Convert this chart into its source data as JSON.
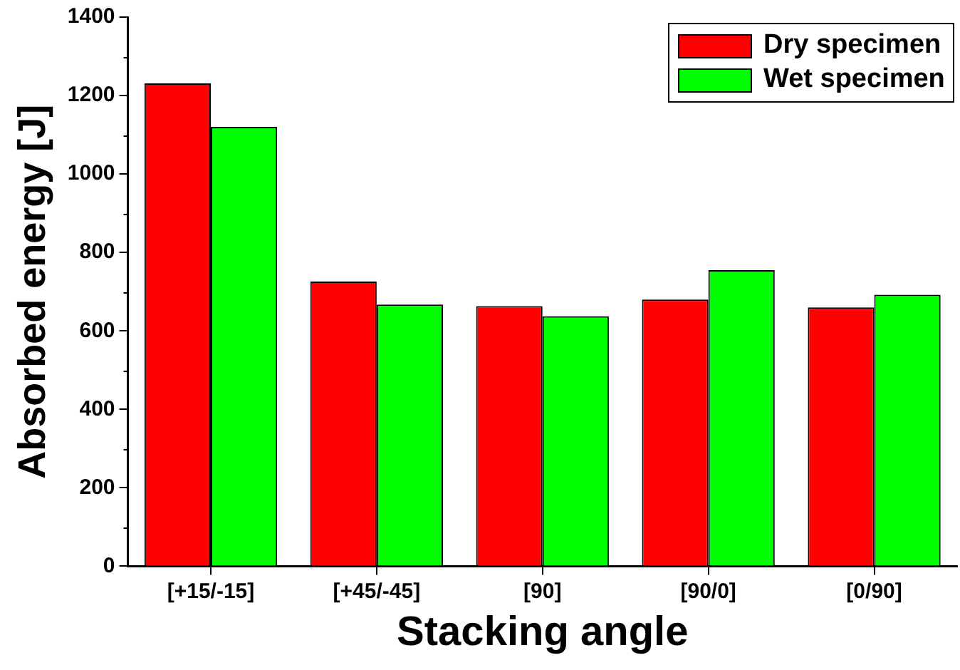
{
  "chart_data": {
    "type": "bar",
    "xlabel": "Stacking angle",
    "ylabel": "Absorbed energy [J]",
    "categories": [
      "[+15/-15]",
      "[+45/-45]",
      "[90]",
      "[90/0]",
      "[0/90]"
    ],
    "series": [
      {
        "name": "Dry specimen",
        "color": "#ff0000",
        "values": [
          1231,
          726,
          663,
          680,
          660
        ]
      },
      {
        "name": "Wet specimen",
        "color": "#00ff00",
        "values": [
          1120,
          667,
          637,
          755,
          692
        ]
      }
    ],
    "ylim": [
      0,
      1400
    ],
    "yticks": [
      0,
      200,
      400,
      600,
      800,
      1000,
      1200,
      1400
    ],
    "legend": "top right"
  }
}
